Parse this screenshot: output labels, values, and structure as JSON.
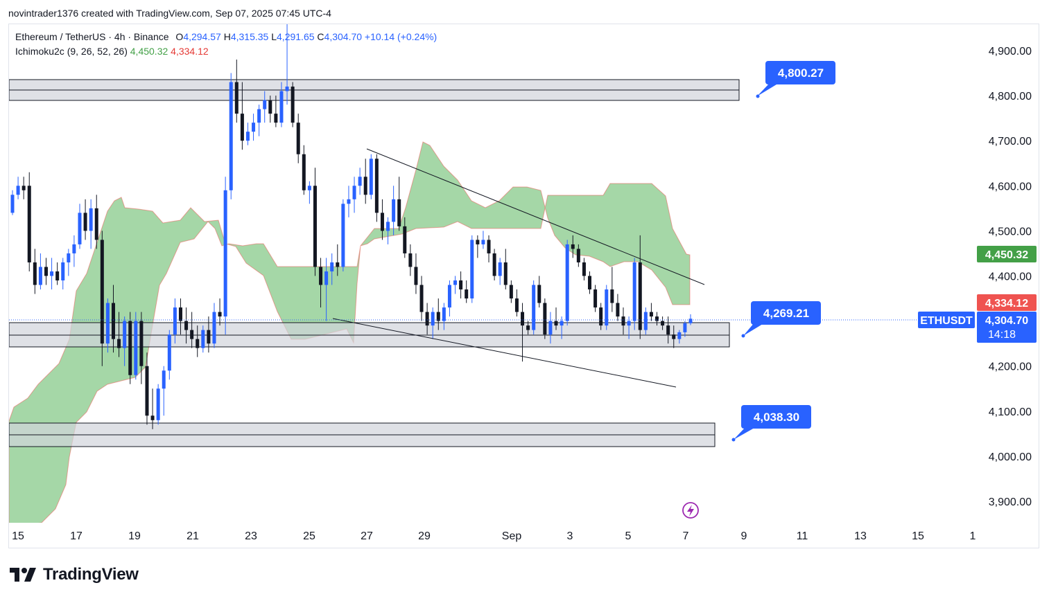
{
  "header": {
    "credit": "novintrader1376 created with TradingView.com, Sep 07, 2025 07:45 UTC-4"
  },
  "legend": {
    "symbol": "Ethereum / TetherUS · 4h · Binance",
    "o_label": "O",
    "o_value": "4,294.57",
    "h_label": "H",
    "h_value": "4,315.35",
    "l_label": "L",
    "l_value": "4,291.65",
    "c_label": "C",
    "c_value": "4,304.70",
    "change": "+10.14 (+0.24%)",
    "indicator": "Ichimoku2c (9, 26, 52, 26)",
    "ind_value1": "4,450.32",
    "ind_value2": "4,334.12"
  },
  "callouts": [
    {
      "label": "4,800.27"
    },
    {
      "label": "4,269.21"
    },
    {
      "label": "4,038.30"
    }
  ],
  "price_tags": [
    {
      "label": "4,450.32",
      "color": "#43a047"
    },
    {
      "label": "4,334.12",
      "color": "#ef5350"
    },
    {
      "label": "4,304.70",
      "color": "#2962ff"
    }
  ],
  "countdown": "14:18",
  "symbol_tag": "ETHUSDT",
  "logo_text": "TradingView",
  "colors": {
    "up": "#2962ff",
    "down": "#131722",
    "cloud": "#4caf50",
    "zone": "#d1d4dc",
    "callout": "#2962ff"
  },
  "chart_data": {
    "type": "candlestick",
    "y_ticks": [
      "4,900.00",
      "4,800.00",
      "4,700.00",
      "4,600.00",
      "4,500.00",
      "4,400.00",
      "4,300.00",
      "4,200.00",
      "4,100.00",
      "4,000.00",
      "3,900.00"
    ],
    "x_ticks": [
      "15",
      "17",
      "19",
      "21",
      "23",
      "25",
      "27",
      "29",
      "Sep",
      "3",
      "5",
      "7",
      "9",
      "11",
      "13",
      "15",
      "1"
    ],
    "ylim": [
      3860,
      4950
    ],
    "last_price": 4304.7,
    "support_resistance_zones": [
      {
        "low": 4790,
        "high": 4835
      },
      {
        "low": 4245,
        "high": 4300
      },
      {
        "low": 4025,
        "high": 4075
      }
    ],
    "trendlines": [
      {
        "from": [
          "Aug 27",
          4690
        ],
        "to": [
          "Sep 7",
          4380
        ]
      },
      {
        "from": [
          "Aug 26",
          4305
        ],
        "to": [
          "Sep 7",
          4155
        ]
      }
    ],
    "callout_levels": [
      4800.27,
      4269.21,
      4038.3
    ]
  }
}
